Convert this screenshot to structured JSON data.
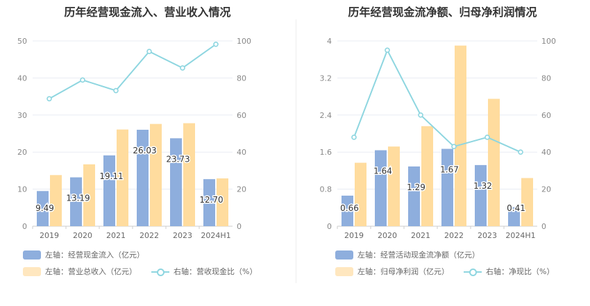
{
  "chart_data": [
    {
      "type": "bar+line",
      "title": "历年经营现金流入、营业收入情况",
      "categories": [
        "2019",
        "2020",
        "2021",
        "2022",
        "2023",
        "2024H1"
      ],
      "left_axis": {
        "ticks": [
          "0",
          "10",
          "20",
          "30",
          "40",
          "50"
        ],
        "ylim": [
          0,
          50
        ]
      },
      "right_axis": {
        "ticks": [
          "0",
          "20",
          "40",
          "60",
          "80",
          "100"
        ],
        "ylim": [
          0,
          100
        ]
      },
      "series": [
        {
          "name": "左轴：经营现金流入（亿元）",
          "kind": "bar",
          "axis": "left",
          "color": "#8eaedd",
          "values": [
            9.49,
            13.19,
            19.11,
            26.03,
            23.73,
            12.7
          ],
          "labels": [
            "9.49",
            "13.19",
            "19.11",
            "26.03",
            "23.73",
            "12.70"
          ]
        },
        {
          "name": "左轴：营业总收入（亿元）",
          "kind": "bar",
          "axis": "left",
          "color": "#ffdc9e",
          "values": [
            13.8,
            16.7,
            26.1,
            27.6,
            27.8,
            12.9
          ]
        },
        {
          "name": "右轴：营收现金比（%）",
          "kind": "line",
          "axis": "right",
          "color": "#8ed6e0",
          "values": [
            68.8,
            78.9,
            73.2,
            94.3,
            85.4,
            98.2
          ]
        }
      ]
    },
    {
      "type": "bar+line",
      "title": "历年经营现金流净额、归母净利润情况",
      "categories": [
        "2019",
        "2020",
        "2021",
        "2022",
        "2023",
        "2024H1"
      ],
      "left_axis": {
        "ticks": [
          "0",
          "0.8",
          "1.6",
          "2.4",
          "3.2",
          "4"
        ],
        "ylim": [
          0,
          4
        ]
      },
      "right_axis": {
        "ticks": [
          "0",
          "20",
          "40",
          "60",
          "80",
          "100"
        ],
        "ylim": [
          0,
          100
        ]
      },
      "series": [
        {
          "name": "左轴：经营活动现金流净额（亿元）",
          "kind": "bar",
          "axis": "left",
          "color": "#8eaedd",
          "values": [
            0.66,
            1.64,
            1.29,
            1.67,
            1.32,
            0.41
          ],
          "labels": [
            "0.66",
            "1.64",
            "1.29",
            "1.67",
            "1.32",
            "0.41"
          ]
        },
        {
          "name": "左轴：归母净利润（亿元）",
          "kind": "bar",
          "axis": "left",
          "color": "#ffdc9e",
          "values": [
            1.37,
            1.72,
            2.16,
            3.9,
            2.75,
            1.04
          ]
        },
        {
          "name": "右轴：净现比（%）",
          "kind": "line",
          "axis": "right",
          "color": "#8ed6e0",
          "values": [
            48,
            95,
            60,
            43,
            48,
            40
          ]
        }
      ]
    }
  ]
}
